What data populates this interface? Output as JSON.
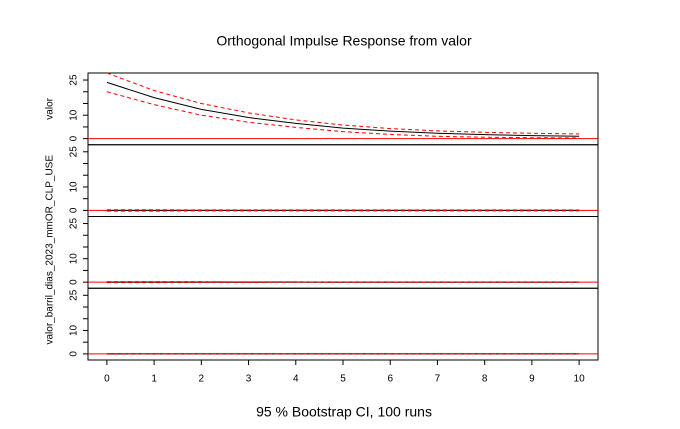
{
  "chart_data": {
    "type": "line",
    "title": "Orthogonal Impulse Response from valor",
    "subtitle": "95 % Bootstrap CI,  100 runs",
    "x": [
      0,
      1,
      2,
      3,
      4,
      5,
      6,
      7,
      8,
      9,
      10
    ],
    "xlim": [
      -0.4,
      10.4
    ],
    "xticks": [
      0,
      1,
      2,
      3,
      4,
      5,
      6,
      7,
      8,
      9,
      10
    ],
    "ylim": [
      -2.6,
      28
    ],
    "yticks": [
      0,
      10,
      25
    ],
    "yminor": [
      5,
      15,
      20
    ],
    "zero_line_color": "#ff0000",
    "panels": [
      {
        "ylabel": "valor",
        "series": [
          {
            "name": "response",
            "color": "#000000",
            "dash": false,
            "values": [
              24,
              17.5,
              12.5,
              9,
              6.5,
              4.5,
              3.2,
              2.3,
              1.7,
              1.3,
              1
            ]
          },
          {
            "name": "upper",
            "color": "#ff0000",
            "dash": true,
            "values": [
              28,
              20.5,
              15,
              11,
              8,
              5.8,
              4.3,
              3.3,
              2.7,
              2.3,
              2
            ]
          },
          {
            "name": "lower",
            "color": "#ff0000",
            "dash": true,
            "values": [
              20,
              14.5,
              10,
              7,
              4.8,
              3,
              1.8,
              1,
              0.6,
              0.4,
              0.3
            ]
          }
        ]
      },
      {
        "ylabel": "valor_barril_dias_2023_mmOR_CLP_USE",
        "series": [
          {
            "name": "response",
            "color": "#000000",
            "dash": false,
            "values": [
              0,
              0,
              0,
              0,
              0,
              0,
              0,
              0,
              0,
              0,
              0
            ]
          },
          {
            "name": "upper",
            "color": "#ff0000",
            "dash": true,
            "values": [
              0.3,
              0.3,
              0.2,
              0.2,
              0.2,
              0.2,
              0.2,
              0.2,
              0.2,
              0.2,
              0.2
            ]
          },
          {
            "name": "lower",
            "color": "#ff0000",
            "dash": true,
            "values": [
              -0.3,
              -0.3,
              -0.2,
              -0.2,
              -0.2,
              -0.2,
              -0.2,
              -0.2,
              -0.2,
              -0.2,
              -0.2
            ]
          }
        ]
      },
      {
        "series": [
          {
            "name": "response",
            "color": "#000000",
            "dash": false,
            "values": [
              0,
              0,
              0,
              0,
              0,
              0,
              0,
              0,
              0,
              0,
              0
            ]
          },
          {
            "name": "upper",
            "color": "#ff0000",
            "dash": true,
            "values": [
              0.2,
              0.2,
              0.2,
              0.1,
              0.1,
              0,
              0,
              0,
              0,
              0,
              0
            ]
          },
          {
            "name": "lower",
            "color": "#ff0000",
            "dash": true,
            "values": [
              -0.2,
              -0.2,
              -0.1,
              -0.1,
              0,
              0,
              0,
              0,
              0,
              0,
              0
            ]
          }
        ]
      },
      {
        "series": [
          {
            "name": "response",
            "color": "#000000",
            "dash": false,
            "values": [
              0,
              0,
              0,
              0,
              0,
              0,
              0,
              0,
              0,
              0,
              0
            ]
          },
          {
            "name": "upper",
            "color": "#ff0000",
            "dash": true,
            "values": [
              0.1,
              0,
              0,
              0,
              0,
              0,
              0,
              0,
              0,
              0,
              0
            ]
          },
          {
            "name": "lower",
            "color": "#ff0000",
            "dash": true,
            "values": [
              -0.1,
              0,
              0,
              0,
              0,
              0,
              0,
              0,
              0,
              0,
              0
            ]
          }
        ]
      }
    ]
  }
}
